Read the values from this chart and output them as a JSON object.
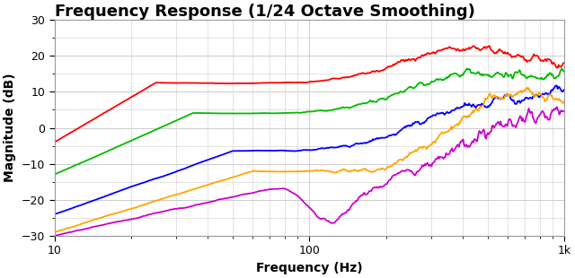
{
  "title": "Frequency Response (1/24 Octave Smoothing)",
  "xlabel": "Frequency (Hz)",
  "ylabel": "Magnitude (dB)",
  "xlim": [
    10,
    1000
  ],
  "ylim": [
    -30,
    30
  ],
  "yticks": [
    -30,
    -20,
    -10,
    0,
    10,
    20,
    30
  ],
  "colors": {
    "red": "#FF0000",
    "green": "#00BB00",
    "blue": "#0000FF",
    "orange": "#FFA500",
    "magenta": "#CC00CC"
  },
  "bg_color": "#FFFFFF",
  "grid_color": "#CCCCCC",
  "title_fontsize": 13,
  "label_fontsize": 10
}
